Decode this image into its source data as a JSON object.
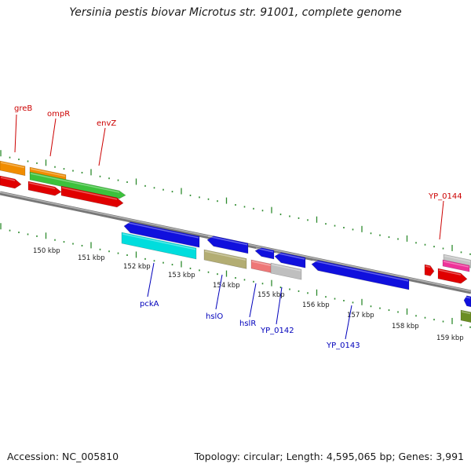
{
  "title": "Yersinia pestis biovar Microtus str. 91001, complete genome",
  "footer": {
    "accession": "Accession: NC_005810",
    "summary": "Topology: circular; Length: 4,595,065 bp; Genes: 3,991"
  },
  "scale_labels": [
    "150 kbp",
    "151 kbp",
    "152 kbp",
    "153 kbp",
    "154 kbp",
    "155 kbp",
    "156 kbp",
    "157 kbp",
    "158 kbp",
    "159 kbp"
  ],
  "forward_gene_labels": [
    "greB",
    "ompR",
    "envZ",
    "YP_0144"
  ],
  "reverse_gene_labels": [
    "pckA",
    "hslO",
    "hslR",
    "YP_0142",
    "YP_0143"
  ],
  "colors": {
    "forward_label": "#cc0000",
    "reverse_label": "#0000bb",
    "backbone": "#8a8a8a",
    "tick": "#2e8b2e"
  }
}
